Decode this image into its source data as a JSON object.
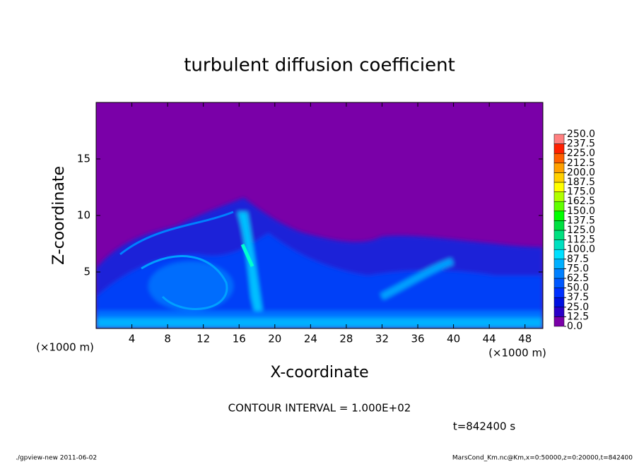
{
  "chart_data": {
    "type": "contour",
    "title": "turbulent diffusion coefficient",
    "x_label": "X-coordinate",
    "y_label": "Z-coordinate",
    "x_unit": "(×1000 m)",
    "y_unit": "(×1000 m)",
    "xlim": [
      0,
      50
    ],
    "xticks": [
      4,
      8,
      12,
      16,
      20,
      24,
      28,
      32,
      36,
      40,
      44,
      48
    ],
    "ylim": [
      0,
      20
    ],
    "yticks": [
      5,
      10,
      15
    ],
    "contour_note": "CONTOUR INTERVAL = 1.000E+02",
    "time_label": "t=842400 s",
    "footer_left": "./gpview-new   2011-06-02",
    "footer_right": "MarsCond_Km.nc@Km,x=0:50000,z=0:20000,t=842400",
    "colorbar": {
      "levels": [
        {
          "value": 0,
          "label": "0.0"
        },
        {
          "value": 12.5,
          "label": "12.5"
        },
        {
          "value": 25,
          "label": "25.0"
        },
        {
          "value": 37.5,
          "label": "37.5"
        },
        {
          "value": 50,
          "label": "50.0"
        },
        {
          "value": 62.5,
          "label": "62.5"
        },
        {
          "value": 75,
          "label": "75.0"
        },
        {
          "value": 87.5,
          "label": "87.5"
        },
        {
          "value": 100,
          "label": "100.0"
        },
        {
          "value": 112.5,
          "label": "112.5"
        },
        {
          "value": 125,
          "label": "125.0"
        },
        {
          "value": 137.5,
          "label": "137.5"
        },
        {
          "value": 150,
          "label": "150.0"
        },
        {
          "value": 162.5,
          "label": "162.5"
        },
        {
          "value": 175,
          "label": "175.0"
        },
        {
          "value": 187.5,
          "label": "187.5"
        },
        {
          "value": 200,
          "label": "200.0"
        },
        {
          "value": 212.5,
          "label": "212.5"
        },
        {
          "value": 225,
          "label": "225.0"
        },
        {
          "value": 237.5,
          "label": "237.5"
        },
        {
          "value": 250,
          "label": "250.0"
        }
      ],
      "colors": [
        "#7a00a8",
        "#2a00c8",
        "#0010e0",
        "#0030ff",
        "#0058ff",
        "#0080ff",
        "#00b0ff",
        "#00e0ff",
        "#00e0c0",
        "#00e080",
        "#00e040",
        "#00ff00",
        "#60ff00",
        "#b0ff00",
        "#ffff00",
        "#ffd000",
        "#ffa000",
        "#ff6000",
        "#ff2000",
        "#ff8080"
      ]
    }
  }
}
